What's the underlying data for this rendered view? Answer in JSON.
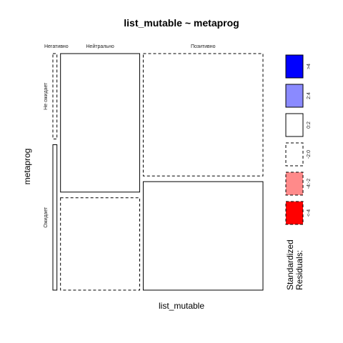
{
  "chart_data": {
    "type": "mosaic",
    "title": "list_mutable ~ metaprog",
    "xlabel": "list_mutable",
    "ylabel": "metaprog",
    "x_categories": [
      "Негативно",
      "Нейтрально",
      "Позитивно"
    ],
    "y_categories": [
      "Не ожидает",
      "Ожидает"
    ],
    "cells": [
      {
        "x": "Негативно",
        "y": "Не ожидает",
        "shade": "-2:0",
        "x_share": 0.02,
        "y_share": 0.37
      },
      {
        "x": "Негативно",
        "y": "Ожидает",
        "shade": "0:2",
        "x_share": 0.02,
        "y_share": 0.63
      },
      {
        "x": "Нейтрально",
        "y": "Не ожидает",
        "shade": "0:2",
        "x_share": 0.39,
        "y_share": 0.6
      },
      {
        "x": "Нейтрально",
        "y": "Ожидает",
        "shade": "-2:0",
        "x_share": 0.39,
        "y_share": 0.4
      },
      {
        "x": "Позитивно",
        "y": "Не ожидает",
        "shade": "-2:0",
        "x_share": 0.59,
        "y_share": 0.53
      },
      {
        "x": "Позитивно",
        "y": "Ожидает",
        "shade": "0:2",
        "x_share": 0.59,
        "y_share": 0.47
      }
    ],
    "legend": {
      "title": "Standardized Residuals:",
      "placement": "right",
      "items": [
        {
          "label": ">4",
          "fill": "#0000ff",
          "dashed": false
        },
        {
          "label": "2:4",
          "fill": "#8a8aff",
          "dashed": false
        },
        {
          "label": "0:2",
          "fill": "#ffffff",
          "dashed": false
        },
        {
          "label": "-2:0",
          "fill": "#ffffff",
          "dashed": true
        },
        {
          "label": "-4:-2",
          "fill": "#ff8a8a",
          "dashed": true
        },
        {
          "label": "<-4",
          "fill": "#ff0000",
          "dashed": true
        }
      ]
    }
  }
}
